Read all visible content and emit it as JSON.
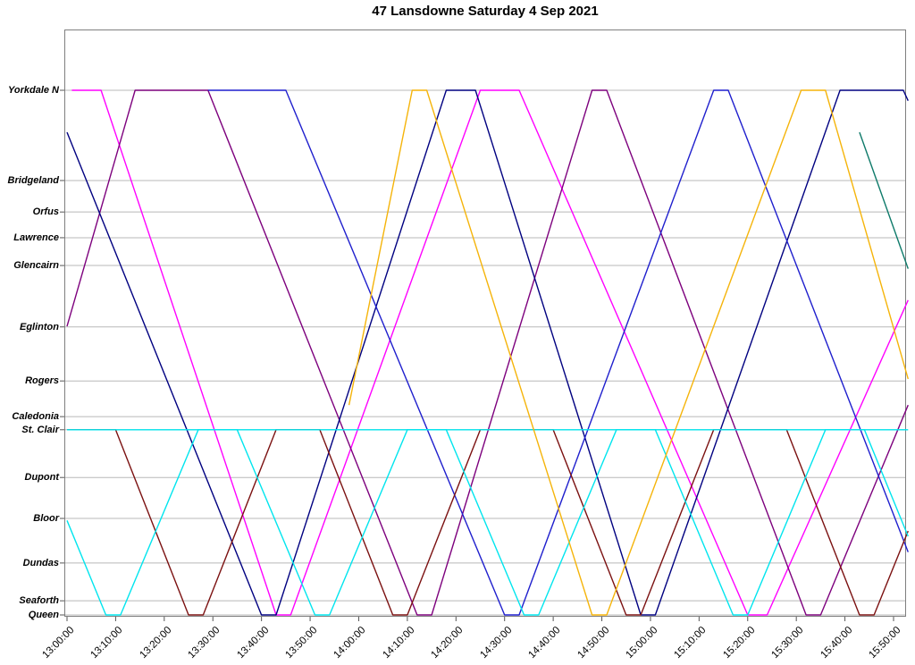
{
  "chart_data": {
    "type": "line",
    "title": "47 Lansdowne Saturday 4 Sep 2021",
    "xlabel": "",
    "ylabel": "",
    "grid": "horizontal-only",
    "legend_position": "none",
    "x_axis": {
      "unit": "time",
      "start": "13:00:00",
      "end": "15:50:00",
      "tick_interval_minutes": 10,
      "tick_labels": [
        "13:00:00",
        "13:10:00",
        "13:20:00",
        "13:30:00",
        "13:40:00",
        "13:50:00",
        "14:00:00",
        "14:10:00",
        "14:20:00",
        "14:30:00",
        "14:40:00",
        "14:50:00",
        "15:00:00",
        "15:10:00",
        "15:20:00",
        "15:30:00",
        "15:40:00",
        "15:50:00"
      ]
    },
    "y_axis": {
      "unit": "station-distance-percent",
      "stations": [
        {
          "name": "Yorkdale N",
          "d": 100
        },
        {
          "name": "Bridgeland",
          "d": 82.8
        },
        {
          "name": "Orfus",
          "d": 76.8
        },
        {
          "name": "Lawrence",
          "d": 71.9
        },
        {
          "name": "Glencairn",
          "d": 66.6
        },
        {
          "name": "Eglinton",
          "d": 54.9
        },
        {
          "name": "Rogers",
          "d": 44.6
        },
        {
          "name": "Caledonia",
          "d": 37.8
        },
        {
          "name": "St. Clair",
          "d": 35.3
        },
        {
          "name": "Dupont",
          "d": 26.2
        },
        {
          "name": "Bloor",
          "d": 18.4
        },
        {
          "name": "Dundas",
          "d": 9.9
        },
        {
          "name": "Seaforth",
          "d": 2.7
        },
        {
          "name": "Queen",
          "d": 0
        }
      ]
    },
    "series": [
      {
        "name": "run-magenta",
        "color": "#ff00ff",
        "points": [
          [
            1,
            100
          ],
          [
            7,
            100
          ],
          [
            43,
            0
          ],
          [
            46,
            0
          ],
          [
            85,
            100
          ],
          [
            93,
            100
          ],
          [
            140,
            0
          ],
          [
            144,
            0
          ],
          [
            173,
            60
          ]
        ]
      },
      {
        "name": "run-purple",
        "color": "#7d007d",
        "points": [
          [
            0,
            55
          ],
          [
            14,
            100
          ],
          [
            29,
            100
          ],
          [
            72,
            0
          ],
          [
            75,
            0
          ],
          [
            108,
            100
          ],
          [
            111,
            100
          ],
          [
            152,
            0
          ],
          [
            155,
            0
          ],
          [
            173,
            40
          ]
        ]
      },
      {
        "name": "run-navy-1",
        "color": "#000080",
        "points": [
          [
            0,
            92
          ],
          [
            40,
            0
          ],
          [
            43,
            0
          ],
          [
            78,
            100
          ],
          [
            84,
            100
          ],
          [
            118,
            0
          ],
          [
            121,
            0
          ],
          [
            159,
            100
          ],
          [
            172,
            100
          ],
          [
            173,
            98
          ]
        ]
      },
      {
        "name": "run-blue-2",
        "color": "#1f1fcd",
        "points": [
          [
            29,
            100
          ],
          [
            45,
            100
          ],
          [
            90,
            0
          ],
          [
            93,
            0
          ],
          [
            133,
            100
          ],
          [
            136,
            100
          ],
          [
            173,
            12
          ]
        ]
      },
      {
        "name": "run-maroon",
        "color": "#7b1111",
        "points": [
          [
            0,
            35.3
          ],
          [
            10,
            35.3
          ],
          [
            25,
            0
          ],
          [
            28,
            0
          ],
          [
            43,
            35.3
          ],
          [
            52,
            35.3
          ],
          [
            67,
            0
          ],
          [
            70,
            0
          ],
          [
            85,
            35.3
          ],
          [
            100,
            35.3
          ],
          [
            115,
            0
          ],
          [
            118,
            0
          ],
          [
            133,
            35.3
          ],
          [
            148,
            35.3
          ],
          [
            163,
            0
          ],
          [
            166,
            0
          ],
          [
            173,
            16
          ]
        ]
      },
      {
        "name": "run-cyan-flat",
        "color": "#00e5ee",
        "points": [
          [
            0,
            35.3
          ],
          [
            173,
            35.3
          ]
        ]
      },
      {
        "name": "run-cyan-shuttle",
        "color": "#00e5ee",
        "points": [
          [
            0,
            18
          ],
          [
            8,
            0
          ],
          [
            11,
            0
          ],
          [
            27,
            35.3
          ],
          [
            35,
            35.3
          ],
          [
            51,
            0
          ],
          [
            54,
            0
          ],
          [
            70,
            35.3
          ],
          [
            78,
            35.3
          ],
          [
            94,
            0
          ],
          [
            97,
            0
          ],
          [
            113,
            35.3
          ],
          [
            121,
            35.3
          ],
          [
            137,
            0
          ],
          [
            140,
            0
          ],
          [
            156,
            35.3
          ],
          [
            164,
            35.3
          ],
          [
            173,
            15
          ]
        ]
      },
      {
        "name": "run-orange",
        "color": "#f5b40a",
        "points": [
          [
            58,
            40
          ],
          [
            71,
            100
          ],
          [
            74,
            100
          ],
          [
            108,
            0
          ],
          [
            111,
            0
          ],
          [
            151,
            100
          ],
          [
            156,
            100
          ],
          [
            173,
            45
          ]
        ]
      },
      {
        "name": "run-teal",
        "color": "#0e7a6a",
        "points": [
          [
            163,
            92
          ],
          [
            173,
            66
          ]
        ]
      }
    ]
  }
}
